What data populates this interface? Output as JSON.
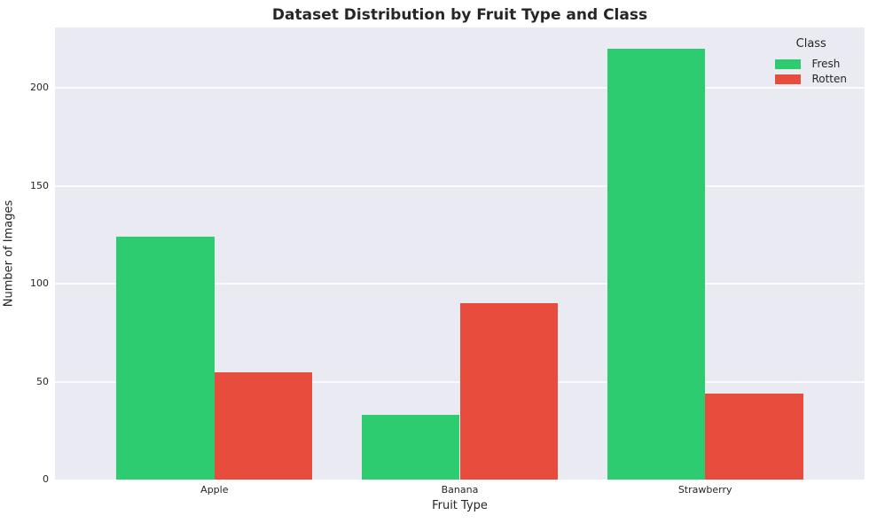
{
  "chart_data": {
    "type": "bar",
    "title": "Dataset Distribution by Fruit Type and Class",
    "xlabel": "Fruit Type",
    "ylabel": "Number of Images",
    "categories": [
      "Apple",
      "Banana",
      "Strawberry"
    ],
    "series": [
      {
        "name": "Fresh",
        "color": "#2ecc71",
        "values": [
          124,
          33,
          220
        ]
      },
      {
        "name": "Rotten",
        "color": "#e74c3c",
        "values": [
          55,
          90,
          44
        ]
      }
    ],
    "yticks": [
      0,
      50,
      100,
      150,
      200
    ],
    "ylim": [
      0,
      231
    ],
    "xlim": [
      -0.65,
      2.65
    ],
    "bar_group_width": 0.8,
    "grid": true,
    "legend": {
      "title": "Class",
      "position": "upper right"
    },
    "colors": {
      "plot_background": "#eaeaf2",
      "gridline": "#ffffff",
      "text": "#262626",
      "figure_background": "#ffffff"
    }
  }
}
